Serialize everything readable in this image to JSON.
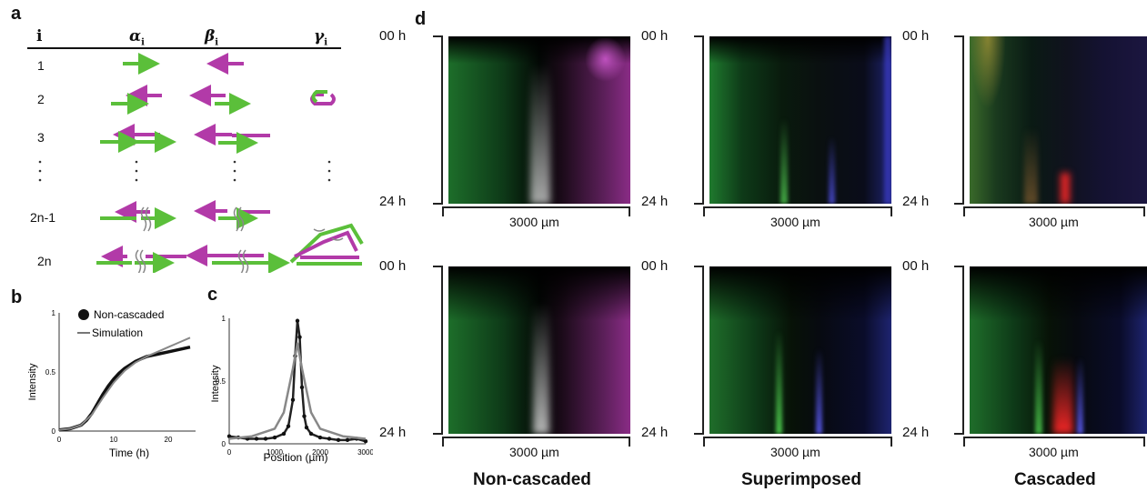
{
  "panel_a": {
    "label": "a",
    "headers": [
      "i",
      "α",
      "β",
      "γ"
    ],
    "header_sub": "i",
    "rows": [
      "1",
      "2",
      "3",
      "2n-1",
      "2n"
    ]
  },
  "panel_b": {
    "label": "b",
    "legend": [
      "Non-cascaded",
      "Simulation"
    ],
    "xlabel": "Time (h)",
    "ylabel": "Intensity",
    "xticks": [
      "0",
      "10",
      "20"
    ],
    "yticks": [
      "0",
      "0.5",
      "1"
    ]
  },
  "panel_c": {
    "label": "c",
    "xlabel": "Position (µm)",
    "ylabel": "Intensity",
    "xticks": [
      "0",
      "1000",
      "2000",
      "3000"
    ],
    "yticks": [
      "0",
      "0.5",
      "1"
    ]
  },
  "panel_d": {
    "label": "d",
    "time_start": "00 h",
    "time_end": "24 h",
    "scale": "3000 µm",
    "categories": [
      "Non-cascaded",
      "Superimposed",
      "Cascaded"
    ]
  },
  "colors": {
    "green": "#5bbf3a",
    "magenta": "#b23aa8",
    "red": "#ff2020",
    "blue": "#2a2ad0"
  },
  "chart_data": [
    {
      "type": "line",
      "title": "",
      "xlabel": "Time (h)",
      "ylabel": "Intensity",
      "xlim": [
        0,
        25
      ],
      "ylim": [
        0,
        1
      ],
      "series": [
        {
          "name": "Non-cascaded",
          "x": [
            0,
            2,
            4,
            5,
            6,
            7,
            8,
            9,
            10,
            11,
            12,
            13,
            14,
            15,
            16,
            18,
            20,
            22,
            24
          ],
          "values": [
            0.01,
            0.02,
            0.05,
            0.09,
            0.15,
            0.23,
            0.31,
            0.38,
            0.44,
            0.49,
            0.53,
            0.56,
            0.59,
            0.61,
            0.63,
            0.65,
            0.67,
            0.69,
            0.71
          ]
        },
        {
          "name": "Simulation",
          "x": [
            0,
            2,
            4,
            6,
            8,
            10,
            12,
            14,
            16,
            18,
            20,
            22,
            24
          ],
          "values": [
            0.01,
            0.02,
            0.05,
            0.14,
            0.28,
            0.41,
            0.51,
            0.58,
            0.63,
            0.67,
            0.71,
            0.75,
            0.79
          ]
        }
      ]
    },
    {
      "type": "line",
      "title": "",
      "xlabel": "Position (µm)",
      "ylabel": "Intensity",
      "xlim": [
        0,
        3000
      ],
      "ylim": [
        0,
        1
      ],
      "series": [
        {
          "name": "",
          "x": [
            0,
            200,
            400,
            600,
            800,
            1000,
            1200,
            1300,
            1400,
            1450,
            1500,
            1550,
            1600,
            1650,
            1700,
            1800,
            2000,
            2200,
            2400,
            2600,
            2800,
            3000
          ],
          "values": [
            0.06,
            0.05,
            0.04,
            0.04,
            0.04,
            0.05,
            0.08,
            0.14,
            0.35,
            0.7,
            0.98,
            0.85,
            0.45,
            0.22,
            0.13,
            0.08,
            0.05,
            0.04,
            0.03,
            0.03,
            0.04,
            0.02
          ]
        },
        {
          "name": "",
          "x": [
            0,
            500,
            1000,
            1200,
            1400,
            1500,
            1600,
            1800,
            2000,
            2500,
            3000
          ],
          "values": [
            0.04,
            0.06,
            0.12,
            0.25,
            0.6,
            0.8,
            0.6,
            0.25,
            0.12,
            0.06,
            0.04
          ]
        }
      ]
    }
  ]
}
